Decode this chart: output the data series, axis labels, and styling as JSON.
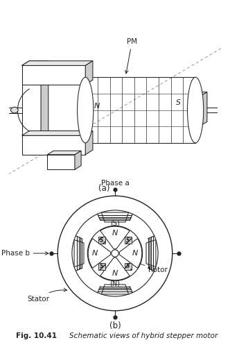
{
  "title": "Fig. 10.41",
  "caption": "Schematic views of hybrid stepper motor",
  "bg_color": "#ffffff",
  "label_a": "(a)",
  "label_b": "(b)",
  "pm_label": "PM",
  "phase_a_label": "Phase a",
  "phase_b_label": "Phase b",
  "rotor_label": "Rotor",
  "stator_label": "Stator",
  "N_label": "N",
  "S_label": "S",
  "line_color": "#222222",
  "gray_fill": "#d8d8d8"
}
